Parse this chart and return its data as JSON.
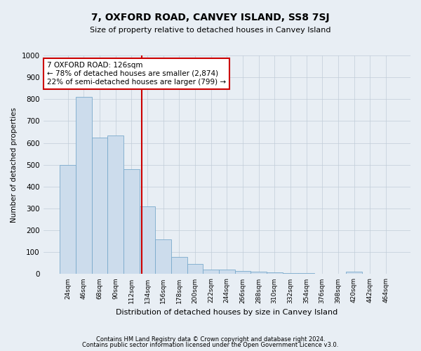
{
  "title": "7, OXFORD ROAD, CANVEY ISLAND, SS8 7SJ",
  "subtitle": "Size of property relative to detached houses in Canvey Island",
  "xlabel": "Distribution of detached houses by size in Canvey Island",
  "ylabel": "Number of detached properties",
  "footer1": "Contains HM Land Registry data © Crown copyright and database right 2024.",
  "footer2": "Contains public sector information licensed under the Open Government Licence v3.0.",
  "categories": [
    "24sqm",
    "46sqm",
    "68sqm",
    "90sqm",
    "112sqm",
    "134sqm",
    "156sqm",
    "178sqm",
    "200sqm",
    "222sqm",
    "244sqm",
    "266sqm",
    "288sqm",
    "310sqm",
    "332sqm",
    "354sqm",
    "376sqm",
    "398sqm",
    "420sqm",
    "442sqm",
    "464sqm"
  ],
  "values": [
    500,
    810,
    625,
    635,
    480,
    310,
    160,
    80,
    45,
    22,
    20,
    15,
    10,
    8,
    5,
    3,
    2,
    2,
    10,
    0,
    0
  ],
  "bar_color": "#ccdcec",
  "bar_edge_color": "#7aaacc",
  "property_line_color": "#cc0000",
  "annotation_line1": "7 OXFORD ROAD: 126sqm",
  "annotation_line2": "← 78% of detached houses are smaller (2,874)",
  "annotation_line3": "22% of semi-detached houses are larger (799) →",
  "annotation_box_color": "#ffffff",
  "annotation_box_edge_color": "#cc0000",
  "ylim": [
    0,
    1000
  ],
  "background_color": "#e8eef4",
  "plot_background_color": "#e8eef4",
  "grid_color": "#c0ccd8",
  "line_x_index": 4.636
}
